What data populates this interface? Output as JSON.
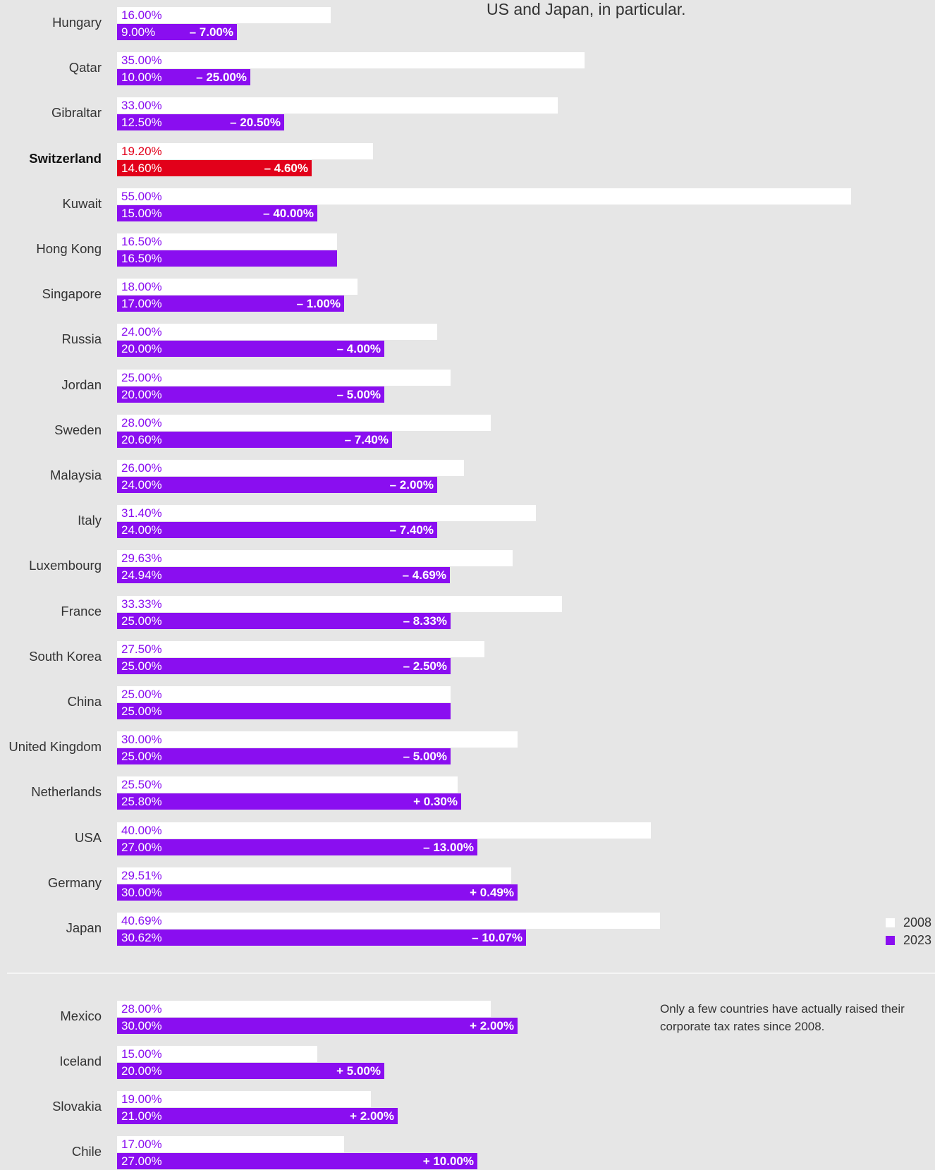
{
  "intro_text": "US and Japan, in particular.",
  "note_text": "Only a few countries have actually raised their corporate tax rates since 2008.",
  "legend": [
    {
      "label": "2008",
      "color": "#ffffff"
    },
    {
      "label": "2023",
      "color": "#8a0ef0"
    }
  ],
  "colors": {
    "accent": "#8a0ef0",
    "highlight": "#e2001a",
    "bar_2008": "#ffffff",
    "background": "#e6e6e6"
  },
  "chart_data": [
    {
      "type": "bar",
      "orientation": "horizontal",
      "series": [
        {
          "name": "2008"
        },
        {
          "name": "2023"
        }
      ],
      "rows": [
        {
          "country": "Hungary",
          "v2008": 16.0,
          "v2023": 9.0,
          "l2008": "16.00%",
          "l2023": "9.00%",
          "change": "– 7.00%"
        },
        {
          "country": "Qatar",
          "v2008": 35.0,
          "v2023": 10.0,
          "l2008": "35.00%",
          "l2023": "10.00%",
          "change": "– 25.00%"
        },
        {
          "country": "Gibraltar",
          "v2008": 33.0,
          "v2023": 12.5,
          "l2008": "33.00%",
          "l2023": "12.50%",
          "change": "– 20.50%"
        },
        {
          "country": "Switzerland",
          "v2008": 19.2,
          "v2023": 14.6,
          "l2008": "19.20%",
          "l2023": "14.60%",
          "change": "– 4.60%",
          "highlight": true
        },
        {
          "country": "Kuwait",
          "v2008": 55.0,
          "v2023": 15.0,
          "l2008": "55.00%",
          "l2023": "15.00%",
          "change": "– 40.00%"
        },
        {
          "country": "Hong Kong",
          "v2008": 16.5,
          "v2023": 16.5,
          "l2008": "16.50%",
          "l2023": "16.50%",
          "change": ""
        },
        {
          "country": "Singapore",
          "v2008": 18.0,
          "v2023": 17.0,
          "l2008": "18.00%",
          "l2023": "17.00%",
          "change": "– 1.00%"
        },
        {
          "country": "Russia",
          "v2008": 24.0,
          "v2023": 20.0,
          "l2008": "24.00%",
          "l2023": "20.00%",
          "change": "– 4.00%"
        },
        {
          "country": "Jordan",
          "v2008": 25.0,
          "v2023": 20.0,
          "l2008": "25.00%",
          "l2023": "20.00%",
          "change": "– 5.00%"
        },
        {
          "country": "Sweden",
          "v2008": 28.0,
          "v2023": 20.6,
          "l2008": "28.00%",
          "l2023": "20.60%",
          "change": "– 7.40%"
        },
        {
          "country": "Malaysia",
          "v2008": 26.0,
          "v2023": 24.0,
          "l2008": "26.00%",
          "l2023": "24.00%",
          "change": "– 2.00%"
        },
        {
          "country": "Italy",
          "v2008": 31.4,
          "v2023": 24.0,
          "l2008": "31.40%",
          "l2023": "24.00%",
          "change": "– 7.40%"
        },
        {
          "country": "Luxembourg",
          "v2008": 29.63,
          "v2023": 24.94,
          "l2008": "29.63%",
          "l2023": "24.94%",
          "change": "– 4.69%"
        },
        {
          "country": "France",
          "v2008": 33.33,
          "v2023": 25.0,
          "l2008": "33.33%",
          "l2023": "25.00%",
          "change": "– 8.33%"
        },
        {
          "country": "South Korea",
          "v2008": 27.5,
          "v2023": 25.0,
          "l2008": "27.50%",
          "l2023": "25.00%",
          "change": "– 2.50%"
        },
        {
          "country": "China",
          "v2008": 25.0,
          "v2023": 25.0,
          "l2008": "25.00%",
          "l2023": "25.00%",
          "change": ""
        },
        {
          "country": "United Kingdom",
          "v2008": 30.0,
          "v2023": 25.0,
          "l2008": "30.00%",
          "l2023": "25.00%",
          "change": "– 5.00%"
        },
        {
          "country": "Netherlands",
          "v2008": 25.5,
          "v2023": 25.8,
          "l2008": "25.50%",
          "l2023": "25.80%",
          "change": "+ 0.30%"
        },
        {
          "country": "USA",
          "v2008": 40.0,
          "v2023": 27.0,
          "l2008": "40.00%",
          "l2023": "27.00%",
          "change": "– 13.00%"
        },
        {
          "country": "Germany",
          "v2008": 29.51,
          "v2023": 30.0,
          "l2008": "29.51%",
          "l2023": "30.00%",
          "change": "+ 0.49%"
        },
        {
          "country": "Japan",
          "v2008": 40.69,
          "v2023": 30.62,
          "l2008": "40.69%",
          "l2023": "30.62%",
          "change": "– 10.07%"
        }
      ]
    },
    {
      "type": "bar",
      "orientation": "horizontal",
      "series": [
        {
          "name": "2008"
        },
        {
          "name": "2023"
        }
      ],
      "rows": [
        {
          "country": "Mexico",
          "v2008": 28.0,
          "v2023": 30.0,
          "l2008": "28.00%",
          "l2023": "30.00%",
          "change": "+ 2.00%"
        },
        {
          "country": "Iceland",
          "v2008": 15.0,
          "v2023": 20.0,
          "l2008": "15.00%",
          "l2023": "20.00%",
          "change": "+ 5.00%"
        },
        {
          "country": "Slovakia",
          "v2008": 19.0,
          "v2023": 21.0,
          "l2008": "19.00%",
          "l2023": "21.00%",
          "change": "+ 2.00%"
        },
        {
          "country": "Chile",
          "v2008": 17.0,
          "v2023": 27.0,
          "l2008": "17.00%",
          "l2023": "27.00%",
          "change": "+ 10.00%"
        }
      ]
    }
  ]
}
